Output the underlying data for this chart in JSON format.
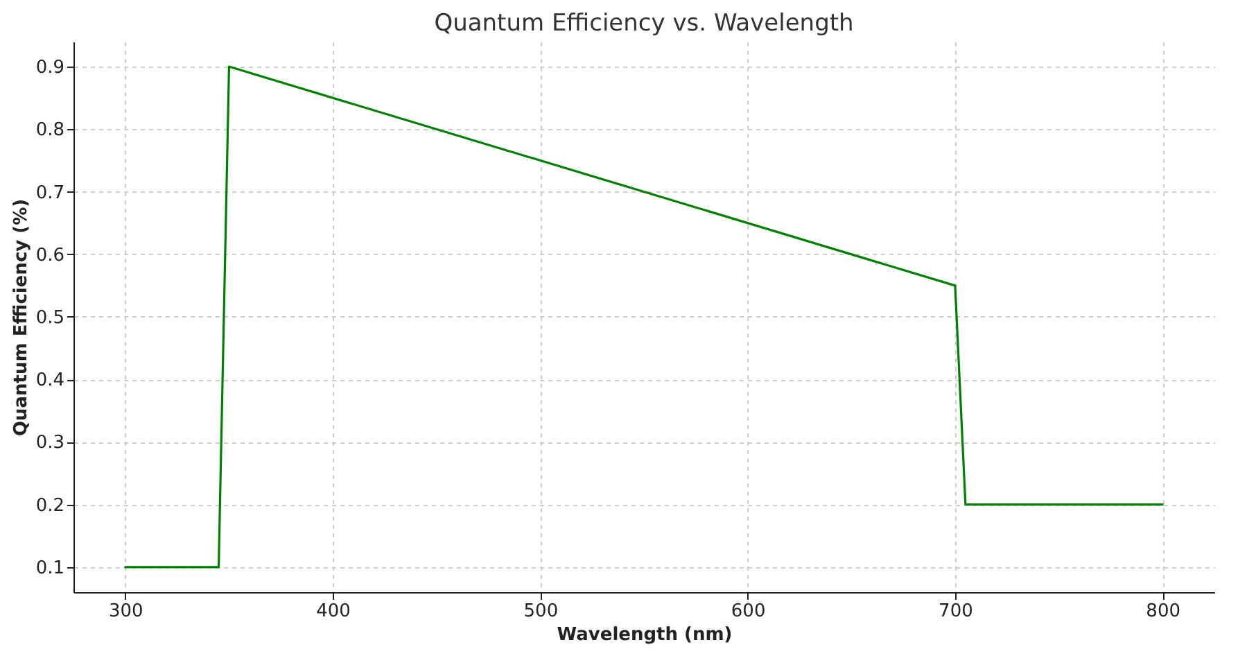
{
  "chart_data": {
    "type": "line",
    "title": "Quantum Efficiency vs. Wavelength",
    "xlabel": "Wavelength (nm)",
    "ylabel": "Quantum Efficiency (%)",
    "x": [
      300,
      345,
      350,
      700,
      705,
      800
    ],
    "series": [
      {
        "color": "#008000",
        "values": [
          0.1,
          0.1,
          0.9,
          0.55,
          0.2,
          0.2
        ]
      }
    ],
    "xlim": [
      275,
      825
    ],
    "xticks": [
      300,
      400,
      500,
      600,
      700,
      800
    ],
    "ylim": [
      0.06,
      0.94
    ],
    "yticks": [
      0.1,
      0.2,
      0.3,
      0.4,
      0.5,
      0.6,
      0.7,
      0.8,
      0.9
    ],
    "grid": true,
    "marker": "none",
    "line_style": "solid"
  }
}
